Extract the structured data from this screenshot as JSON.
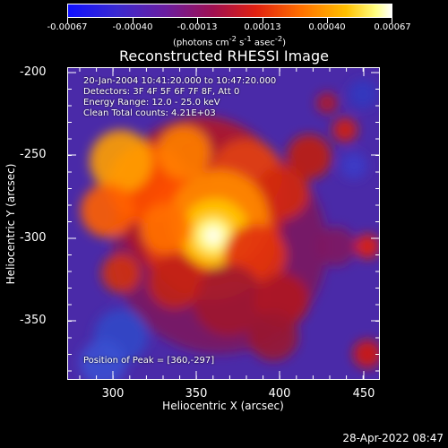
{
  "colorbar": {
    "labels": [
      "-0.00067",
      "-0.00040",
      "-0.00013",
      "0.00013",
      "0.00040",
      "0.00067"
    ],
    "units_prefix": "(photons cm",
    "units_sup1": "-2",
    "units_mid1": " s",
    "units_sup2": "-1",
    "units_mid2": " asec",
    "units_sup3": "-2",
    "units_suffix": ")"
  },
  "plot": {
    "title": "Reconstructed RHESSI Image",
    "info_line1": "20-Jan-2004 10:41:20.000 to 10:47:20.000",
    "info_line2": "Detectors: 3F 4F 5F 6F 7F 8F, Att 0",
    "info_line3": "Energy Range: 12.0 - 25.0 keV",
    "info_line4": "Clean    Total counts: 4.21E+03",
    "peak_text": "Position of Peak = [360,-297]",
    "xlabel": "Heliocentric X (arcsec)",
    "ylabel": "Heliocentric Y (arcsec)",
    "x_ticks": [
      "300",
      "350",
      "400",
      "450"
    ],
    "y_ticks": [
      "-200",
      "-250",
      "-300",
      "-350"
    ]
  },
  "timestamp": "28-Apr-2022 08:47",
  "colors": {
    "low": "#2020ff",
    "mid": "#8a1a8a",
    "high": "#ff8800",
    "peak": "#ffffff"
  }
}
